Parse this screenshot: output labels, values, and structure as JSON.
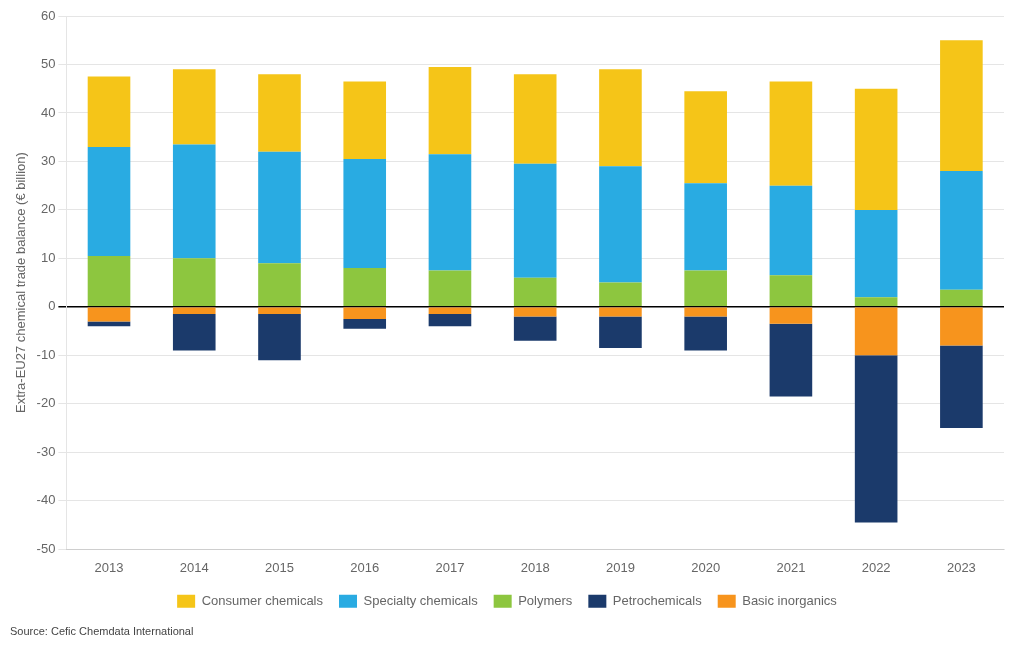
{
  "chart_data": {
    "type": "bar",
    "stacked": true,
    "ylabel": "Extra-EU27 chemical trade balance (€ billion)",
    "annotations": [
      "Source: Cefic Chemdata International"
    ],
    "categories": [
      "2013",
      "2014",
      "2015",
      "2016",
      "2017",
      "2018",
      "2019",
      "2020",
      "2021",
      "2022",
      "2023"
    ],
    "series": [
      {
        "name": "Consumer chemicals",
        "color": "#F5C518",
        "values": [
          14.5,
          15.5,
          16.0,
          16.0,
          18.0,
          18.5,
          20.0,
          19.0,
          21.5,
          25.0,
          27.0
        ]
      },
      {
        "name": "Specialty chemicals",
        "color": "#29ABE2",
        "values": [
          22.5,
          23.5,
          23.0,
          22.5,
          24.0,
          23.5,
          24.0,
          18.0,
          18.5,
          18.0,
          24.5
        ]
      },
      {
        "name": "Polymers",
        "color": "#8DC63F",
        "values": [
          10.5,
          10.0,
          9.0,
          8.0,
          7.5,
          6.0,
          5.0,
          7.5,
          6.5,
          2.0,
          3.5
        ]
      },
      {
        "name": "Petrochemicals",
        "color": "#1B3A6B",
        "values": [
          -1.0,
          -7.5,
          -9.5,
          -2.0,
          -2.5,
          -5.0,
          -6.5,
          -7.0,
          -15.0,
          -34.5,
          -17.0
        ]
      },
      {
        "name": "Basic inorganics",
        "color": "#F7941D",
        "values": [
          -3.0,
          -1.5,
          -1.5,
          -2.5,
          -1.5,
          -2.0,
          -2.0,
          -2.0,
          -3.5,
          -10.0,
          -8.0
        ]
      }
    ],
    "ylim": [
      -50,
      60
    ],
    "yticks": [
      -50,
      -40,
      -30,
      -20,
      -10,
      0,
      10,
      20,
      30,
      40,
      50,
      60
    ],
    "grid": true,
    "legend": "bottom"
  }
}
